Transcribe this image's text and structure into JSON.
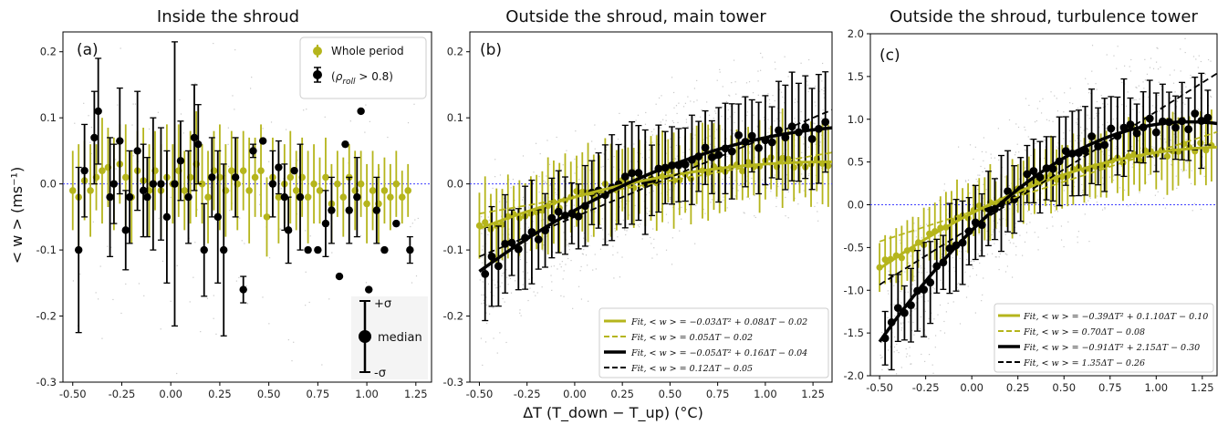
{
  "figure": {
    "ylabel": "< w > (ms⁻¹)",
    "xlabel": "ΔT (T_down − T_up) (°C)"
  },
  "colors": {
    "olive": "#b5b51c",
    "black": "#000000",
    "zero_line": "#4040ff",
    "cloud": "#9a9a9a"
  },
  "chart_data": [
    {
      "type": "scatter",
      "panel": "(a)",
      "title": "Inside the shroud",
      "xlim": [
        -0.55,
        1.33
      ],
      "ylim": [
        -0.3,
        0.23
      ],
      "xticks": [
        "-0.50",
        "-0.25",
        "0.00",
        "0.25",
        "0.50",
        "0.75",
        "1.00",
        "1.25"
      ],
      "yticks": [
        "0.2",
        "0.1",
        "0.0",
        "-0.1",
        "-0.2",
        "-0.3"
      ],
      "legend": {
        "series_1": "Whole period",
        "series_2": "(ρ_roll > 0.8)",
        "rho": "ρ",
        "sub": "roll",
        "cond": " > 0.8)"
      },
      "key": {
        "plus": "+σ",
        "median": "median",
        "minus": "-σ"
      },
      "series": [
        {
          "name": "Whole period",
          "color": "#b5b51c",
          "points": [
            [
              -0.5,
              -0.01,
              0.06
            ],
            [
              -0.47,
              -0.02,
              0.08
            ],
            [
              -0.44,
              0.005,
              0.06
            ],
            [
              -0.41,
              -0.01,
              0.07
            ],
            [
              -0.38,
              0.01,
              0.05
            ],
            [
              -0.35,
              0.02,
              0.08
            ],
            [
              -0.32,
              0.025,
              0.06
            ],
            [
              -0.29,
              0.0,
              0.07
            ],
            [
              -0.26,
              0.03,
              0.06
            ],
            [
              -0.23,
              0.01,
              0.08
            ],
            [
              -0.2,
              -0.02,
              0.07
            ],
            [
              -0.17,
              0.02,
              0.06
            ],
            [
              -0.14,
              0.005,
              0.08
            ],
            [
              -0.11,
              -0.01,
              0.07
            ],
            [
              -0.08,
              0.02,
              0.06
            ],
            [
              -0.05,
              -0.01,
              0.07
            ],
            [
              -0.02,
              0.01,
              0.08
            ],
            [
              0.01,
              0.0,
              0.06
            ],
            [
              0.04,
              0.02,
              0.07
            ],
            [
              0.07,
              -0.01,
              0.06
            ],
            [
              0.1,
              0.01,
              0.07
            ],
            [
              0.13,
              0.03,
              0.08
            ],
            [
              0.16,
              0.0,
              0.06
            ],
            [
              0.19,
              -0.02,
              0.07
            ],
            [
              0.22,
              0.02,
              0.06
            ],
            [
              0.25,
              0.01,
              0.08
            ],
            [
              0.28,
              -0.01,
              0.07
            ],
            [
              0.31,
              0.02,
              0.06
            ],
            [
              0.34,
              0.0,
              0.07
            ],
            [
              0.37,
              0.02,
              0.06
            ],
            [
              0.4,
              -0.01,
              0.08
            ],
            [
              0.43,
              0.01,
              0.06
            ],
            [
              0.46,
              0.02,
              0.07
            ],
            [
              0.49,
              -0.05,
              0.06
            ],
            [
              0.52,
              0.01,
              0.06
            ],
            [
              0.55,
              -0.02,
              0.07
            ],
            [
              0.58,
              0.0,
              0.06
            ],
            [
              0.61,
              0.01,
              0.07
            ],
            [
              0.64,
              -0.01,
              0.06
            ],
            [
              0.67,
              0.01,
              0.06
            ],
            [
              0.7,
              -0.02,
              0.07
            ],
            [
              0.73,
              0.0,
              0.06
            ],
            [
              0.76,
              -0.01,
              0.05
            ],
            [
              0.79,
              0.01,
              0.06
            ],
            [
              0.82,
              -0.03,
              0.06
            ],
            [
              0.85,
              0.0,
              0.05
            ],
            [
              0.88,
              -0.02,
              0.06
            ],
            [
              0.91,
              0.01,
              0.05
            ],
            [
              0.94,
              -0.01,
              0.06
            ],
            [
              0.97,
              0.0,
              0.05
            ],
            [
              1.0,
              -0.03,
              0.06
            ],
            [
              1.03,
              -0.01,
              0.06
            ],
            [
              1.06,
              -0.03,
              0.06
            ],
            [
              1.09,
              -0.01,
              0.05
            ],
            [
              1.12,
              -0.02,
              0.05
            ],
            [
              1.15,
              0.0,
              0.05
            ],
            [
              1.18,
              -0.02,
              0.04
            ],
            [
              1.21,
              -0.01,
              0.04
            ]
          ]
        },
        {
          "name": "(ρ_roll > 0.8)",
          "color": "#000000",
          "points": [
            [
              -0.47,
              -0.1,
              0.125
            ],
            [
              -0.44,
              0.02,
              0.07
            ],
            [
              -0.39,
              0.07,
              0.07
            ],
            [
              -0.37,
              0.11,
              0.08
            ],
            [
              -0.31,
              -0.02,
              0.09
            ],
            [
              -0.29,
              0.0,
              0.06
            ],
            [
              -0.26,
              0.065,
              0.08
            ],
            [
              -0.23,
              -0.07,
              0.06
            ],
            [
              -0.21,
              -0.02,
              0.07
            ],
            [
              -0.17,
              0.05,
              0.09
            ],
            [
              -0.14,
              -0.01,
              0.07
            ],
            [
              -0.12,
              -0.02,
              0.06
            ],
            [
              -0.09,
              0.0,
              0.1
            ],
            [
              -0.05,
              0.0,
              0.085
            ],
            [
              -0.02,
              -0.05,
              0.1
            ],
            [
              0.02,
              0.0,
              0.215
            ],
            [
              0.05,
              0.035,
              0.06
            ],
            [
              0.09,
              -0.02,
              0.07
            ],
            [
              0.12,
              0.07,
              0.08
            ],
            [
              0.14,
              0.06,
              0.06
            ],
            [
              0.17,
              -0.1,
              0.07
            ],
            [
              0.21,
              0.01,
              0.06
            ],
            [
              0.24,
              -0.05,
              0.1
            ],
            [
              0.27,
              -0.1,
              0.13
            ],
            [
              0.33,
              0.01,
              0.06
            ],
            [
              0.37,
              -0.16,
              0.02
            ],
            [
              0.42,
              0.05,
              0.01
            ],
            [
              0.47,
              0.065,
              0.0
            ],
            [
              0.52,
              0.0,
              0.05
            ],
            [
              0.55,
              0.025,
              0.04
            ],
            [
              0.58,
              -0.02,
              0.05
            ],
            [
              0.6,
              -0.07,
              0.05
            ],
            [
              0.63,
              0.02,
              0.0
            ],
            [
              0.66,
              -0.02,
              0.08
            ],
            [
              0.7,
              -0.1,
              0.0
            ],
            [
              0.75,
              -0.1,
              0.0
            ],
            [
              0.79,
              -0.06,
              0.05
            ],
            [
              0.82,
              -0.04,
              0.05
            ],
            [
              0.86,
              -0.14,
              0.0
            ],
            [
              0.89,
              0.06,
              0.0
            ],
            [
              0.91,
              -0.04,
              0.05
            ],
            [
              0.95,
              -0.02,
              0.06
            ],
            [
              0.97,
              0.11,
              0.0
            ],
            [
              1.01,
              -0.16,
              0.0
            ],
            [
              1.05,
              -0.04,
              0.05
            ],
            [
              1.09,
              -0.1,
              0.0
            ],
            [
              1.15,
              -0.06,
              0.0
            ],
            [
              1.22,
              -0.1,
              0.02
            ]
          ]
        }
      ]
    },
    {
      "type": "scatter",
      "panel": "(b)",
      "title": "Outside the shroud, main tower",
      "xlim": [
        -0.55,
        1.35
      ],
      "ylim": [
        -0.3,
        0.23
      ],
      "xticks": [
        "-0.50",
        "-0.25",
        "0.00",
        "0.25",
        "0.50",
        "0.75",
        "1.00",
        "1.25"
      ],
      "yticks": [
        "0.2",
        "0.1",
        "0.0",
        "-0.1",
        "-0.2",
        "-0.3"
      ],
      "fits": [
        {
          "label": "Fit, < w > = −0.03ΔT² + 0.08ΔT − 0.02",
          "a": -0.03,
          "b": 0.08,
          "c": -0.02,
          "color": "#b5b51c",
          "style": "solid"
        },
        {
          "label": "Fit, < w > = 0.05ΔT − 0.02",
          "a": 0,
          "b": 0.05,
          "c": -0.02,
          "color": "#b5b51c",
          "style": "dashed"
        },
        {
          "label": "Fit, < w > = −0.05ΔT² + 0.16ΔT − 0.04",
          "a": -0.05,
          "b": 0.16,
          "c": -0.04,
          "color": "#000000",
          "style": "solid"
        },
        {
          "label": "Fit, < w > = 0.12ΔT − 0.05",
          "a": 0,
          "b": 0.12,
          "c": -0.05,
          "color": "#000000",
          "style": "dashed"
        }
      ]
    },
    {
      "type": "scatter",
      "panel": "(c)",
      "title": "Outside the shroud, turbulence tower",
      "xlim": [
        -0.55,
        1.33
      ],
      "ylim": [
        -2.0,
        2.0
      ],
      "xticks": [
        "-0.50",
        "-0.25",
        "0.00",
        "0.25",
        "0.50",
        "0.75",
        "1.00",
        "1.25"
      ],
      "yticks": [
        "2.0",
        "1.5",
        "1.0",
        "0.5",
        "0.0",
        "-0.5",
        "-1.0",
        "-1.5",
        "-2.0"
      ],
      "fits": [
        {
          "label": "Fit, < w > = −0.39ΔT² + 0.1.10ΔT − 0.10",
          "a": -0.39,
          "b": 1.1,
          "c": -0.1,
          "color": "#b5b51c",
          "style": "solid"
        },
        {
          "label": "Fit, < w > = 0.70ΔT − 0.08",
          "a": 0,
          "b": 0.7,
          "c": -0.08,
          "color": "#b5b51c",
          "style": "dashed"
        },
        {
          "label": "Fit, < w > = −0.91ΔT² + 2.15ΔT − 0.30",
          "a": -0.91,
          "b": 2.15,
          "c": -0.3,
          "color": "#000000",
          "style": "solid"
        },
        {
          "label": "Fit, < w > = 1.35ΔT − 0.26",
          "a": 0,
          "b": 1.35,
          "c": -0.26,
          "color": "#000000",
          "style": "dashed"
        }
      ]
    }
  ]
}
